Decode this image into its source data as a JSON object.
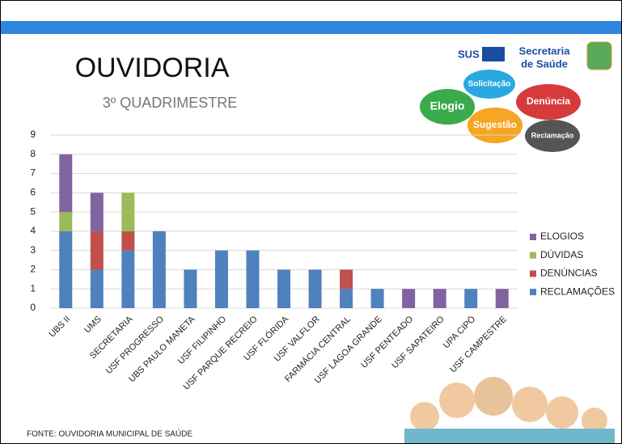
{
  "chart_data": {
    "type": "stacked_bar",
    "title": "OUVIDORIA",
    "subtitle": "3º QUADRIMESTRE",
    "source": "FONTE: OUVIDORIA MUNICIPAL  DE SAÚDE",
    "categories": [
      "UBS II",
      "UMS",
      "SECRETARIA",
      "USF PROGRESSO",
      "UBS PAULO MANETA",
      "USF FILIPINHO",
      "USF PARQUE RECREIO",
      "USF FLÓRIDA",
      "USF VALFLOR",
      "FARMÁCIA CENTRAL",
      "USF LAGOA GRANDE",
      "USF PENTEADO",
      "USF SAPATEIRO",
      "UPA CIPÓ",
      "USF CAMPESTRE"
    ],
    "series": [
      {
        "name": "RECLAMAÇÕES",
        "color": "#4f81bd",
        "values": [
          4,
          2,
          3,
          4,
          2,
          3,
          3,
          2,
          2,
          1,
          1,
          0,
          0,
          1,
          0
        ]
      },
      {
        "name": "DENÚNCIAS",
        "color": "#c0504d",
        "values": [
          0,
          2,
          1,
          0,
          0,
          0,
          0,
          0,
          0,
          1,
          0,
          0,
          0,
          0,
          0
        ]
      },
      {
        "name": "DÚVIDAS",
        "color": "#9bbb59",
        "values": [
          1,
          0,
          2,
          0,
          0,
          0,
          0,
          0,
          0,
          0,
          0,
          0,
          0,
          0,
          0
        ]
      },
      {
        "name": "ELOGIOS",
        "color": "#8064a2",
        "values": [
          3,
          2,
          0,
          0,
          0,
          0,
          0,
          0,
          0,
          0,
          0,
          1,
          1,
          0,
          1
        ]
      }
    ],
    "ylim": [
      0,
      9
    ],
    "yticks": [
      0,
      1,
      2,
      3,
      4,
      5,
      6,
      7,
      8,
      9
    ],
    "grid": true,
    "legend": "right"
  },
  "logo": {
    "sus": "SUS",
    "line1": "Secretaria",
    "line2": "de Saúde"
  },
  "bubbles": [
    "Solicitação",
    "Elogio",
    "Denúncia",
    "Sugestão",
    "Reclamação"
  ]
}
